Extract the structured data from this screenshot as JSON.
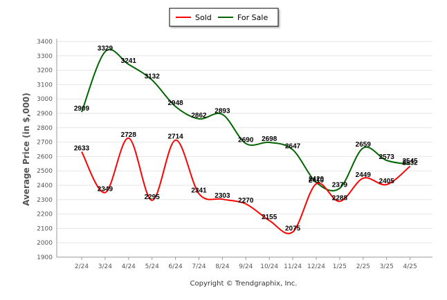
{
  "chart_data": {
    "type": "line",
    "categories": [
      "2/24",
      "3/24",
      "4/24",
      "5/24",
      "6/24",
      "7/24",
      "8/24",
      "9/24",
      "10/24",
      "11/24",
      "12/24",
      "1/25",
      "2/25",
      "3/25",
      "4/25"
    ],
    "series": [
      {
        "name": "Sold",
        "color": "#ff0000",
        "values": [
          2633,
          2349,
          2728,
          2295,
          2714,
          2341,
          2303,
          2270,
          2155,
          2075,
          2410,
          2288,
          2449,
          2405,
          2532
        ]
      },
      {
        "name": "For Sale",
        "color": "#006400",
        "values": [
          2909,
          3329,
          3241,
          3132,
          2948,
          2862,
          2893,
          2690,
          2698,
          2647,
          2420,
          2379,
          2659,
          2573,
          2545
        ]
      }
    ],
    "ylabel": "Average Price (in $,000)",
    "ylim": [
      1900,
      3400
    ],
    "yticks": [
      1900,
      2000,
      2100,
      2200,
      2300,
      2400,
      2500,
      2600,
      2700,
      2800,
      2900,
      3000,
      3100,
      3200,
      3300,
      3400
    ],
    "grid": true,
    "legend_position": "top-center"
  },
  "footer": {
    "copyright": "Copyright © Trendgraphix, Inc."
  }
}
